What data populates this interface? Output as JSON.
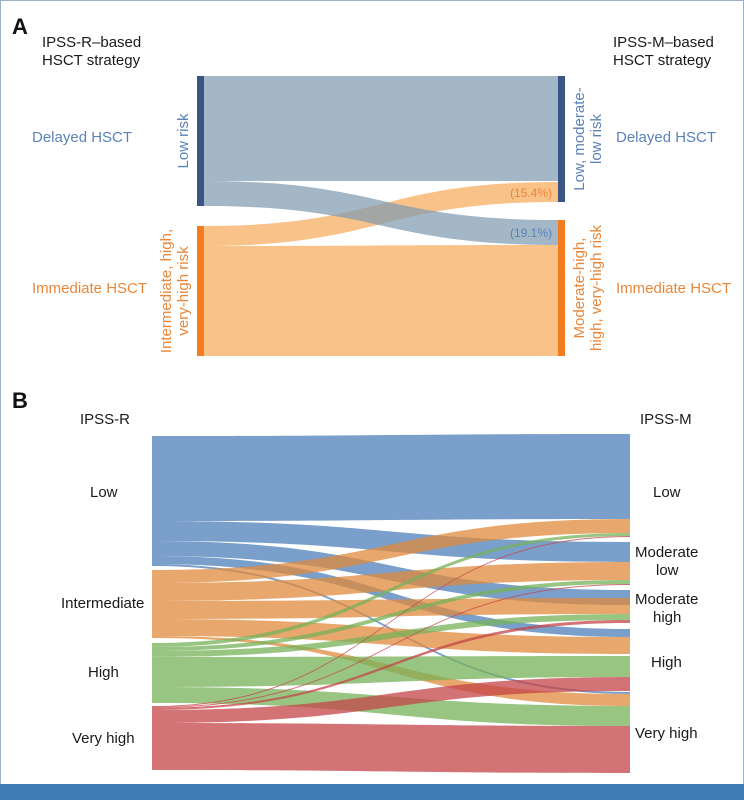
{
  "colors": {
    "blue_text": "#5b82b8",
    "orange_text": "#e8873a",
    "dark_blue_bar": "#3a5584",
    "orange_bar": "#f47c20",
    "flow_blue_a": "#7f9bb0",
    "flow_orange_a": "#f7b36b",
    "b_low": "#4d7fb8",
    "b_intermediate": "#e08a3c",
    "b_high": "#77b259",
    "b_veryhigh": "#c44448",
    "frame": "#9bb0c9",
    "bottom_bar": "#3e7bb5"
  },
  "panel_a": {
    "letter": "A",
    "left_heading": [
      "IPSS-R–based",
      "HSCT strategy"
    ],
    "right_heading": [
      "IPSS-M–based",
      "HSCT strategy"
    ],
    "left_strategy_top": "Delayed HSCT",
    "left_strategy_bottom": "Immediate HSCT",
    "right_strategy_top": "Delayed HSCT",
    "right_strategy_bottom": "Immediate HSCT",
    "left_node_top": "Low risk",
    "left_node_bottom": [
      "Intermediate, high,",
      "very-high risk"
    ],
    "right_node_top": [
      "Low, moderate-",
      "low risk"
    ],
    "right_node_bottom": [
      "Moderate-high,",
      "high, very-high risk"
    ],
    "pct_up": "(15.4%)",
    "pct_down": "(19.1%)",
    "flows": [
      {
        "from": "Low risk",
        "to": "Low, moderate-low risk",
        "share": 0.809
      },
      {
        "from": "Low risk",
        "to": "Moderate-high, high, very-high risk",
        "share": 0.191
      },
      {
        "from": "Intermediate, high, very-high risk",
        "to": "Low, moderate-low risk",
        "share": 0.154
      },
      {
        "from": "Intermediate, high, very-high risk",
        "to": "Moderate-high, high, very-high risk",
        "share": 0.846
      }
    ]
  },
  "panel_b": {
    "letter": "B",
    "left_heading": "IPSS-R",
    "right_heading": "IPSS-M",
    "left_labels": [
      "Low",
      "Intermediate",
      "High",
      "Very high"
    ],
    "right_labels": [
      [
        "Low"
      ],
      [
        "Moderate",
        "low"
      ],
      [
        "Moderate",
        "high"
      ],
      [
        "High"
      ],
      [
        "Very high"
      ]
    ]
  }
}
